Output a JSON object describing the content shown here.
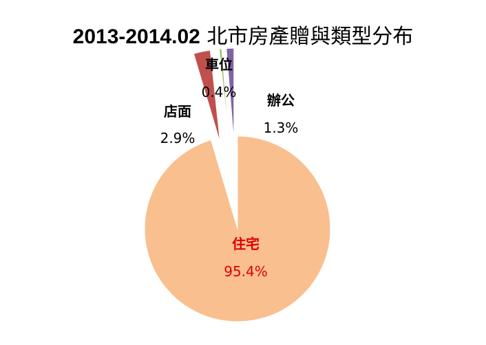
{
  "chart_data": {
    "type": "pie",
    "title_prefix": "2013-2014.02",
    "title_suffix": "北市房產贈與類型分布",
    "categories": [
      "住宅",
      "店面",
      "車位",
      "辦公"
    ],
    "values": [
      95.4,
      2.9,
      0.4,
      1.3
    ],
    "value_labels": [
      "95.4%",
      "2.9%",
      "0.4%",
      "1.3%"
    ],
    "colors": [
      "#f9bf8f",
      "#c0504d",
      "#9bbb59",
      "#8064a2"
    ],
    "label_colors": [
      "#e00000",
      "#000000",
      "#000000",
      "#000000"
    ],
    "exploded": true,
    "legend": "none"
  }
}
